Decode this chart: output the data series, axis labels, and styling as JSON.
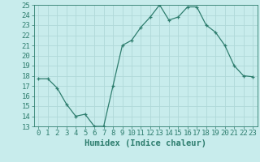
{
  "x": [
    0,
    1,
    2,
    3,
    4,
    5,
    6,
    7,
    8,
    9,
    10,
    11,
    12,
    13,
    14,
    15,
    16,
    17,
    18,
    19,
    20,
    21,
    22,
    23
  ],
  "y": [
    17.7,
    17.7,
    16.8,
    15.2,
    14.0,
    14.2,
    13.0,
    13.0,
    17.0,
    21.0,
    21.5,
    22.8,
    23.8,
    25.0,
    23.5,
    23.8,
    24.8,
    24.8,
    23.0,
    22.3,
    21.0,
    19.0,
    18.0,
    17.9
  ],
  "xlabel": "Humidex (Indice chaleur)",
  "ylim": [
    13,
    25
  ],
  "xlim_min": -0.5,
  "xlim_max": 23.5,
  "yticks": [
    13,
    14,
    15,
    16,
    17,
    18,
    19,
    20,
    21,
    22,
    23,
    24,
    25
  ],
  "xticks": [
    0,
    1,
    2,
    3,
    4,
    5,
    6,
    7,
    8,
    9,
    10,
    11,
    12,
    13,
    14,
    15,
    16,
    17,
    18,
    19,
    20,
    21,
    22,
    23
  ],
  "xtick_labels": [
    "0",
    "1",
    "2",
    "3",
    "4",
    "5",
    "6",
    "7",
    "8",
    "9",
    "10",
    "11",
    "12",
    "13",
    "14",
    "15",
    "16",
    "17",
    "18",
    "19",
    "20",
    "21",
    "22",
    "23"
  ],
  "line_color": "#2e7d6e",
  "marker": "+",
  "bg_color": "#c8ecec",
  "grid_color": "#b0d8d8",
  "xlabel_fontsize": 7.5,
  "tick_fontsize": 6.5,
  "figwidth": 3.2,
  "figheight": 2.0,
  "dpi": 100
}
